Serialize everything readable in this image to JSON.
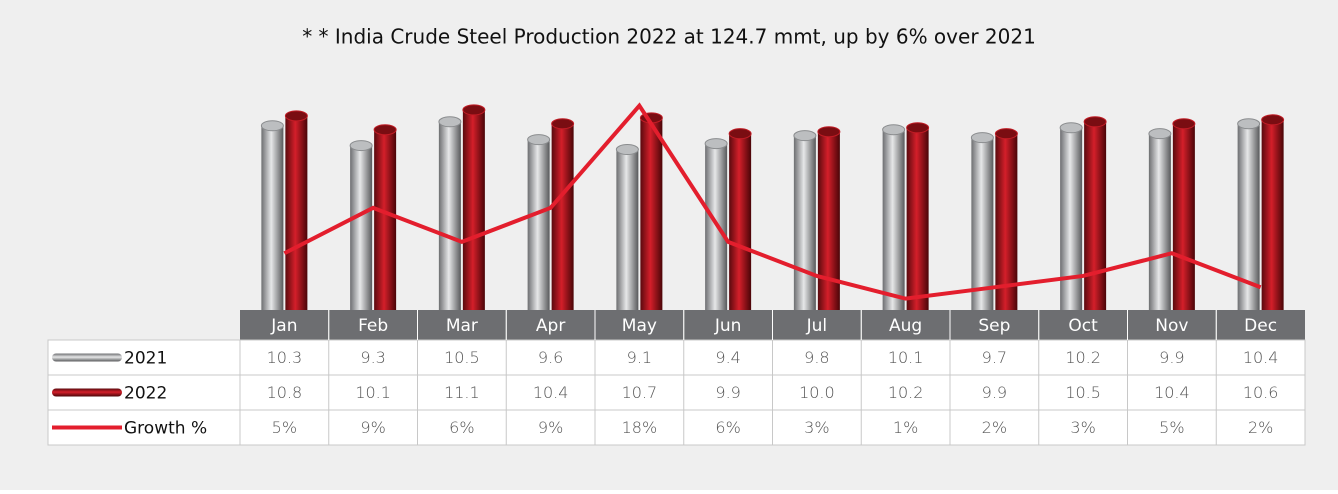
{
  "chart_data": {
    "type": "bar",
    "title": "* * India Crude Steel Production 2022 at 124.7 mmt, up by 6% over 2021",
    "categories": [
      "Jan",
      "Feb",
      "Mar",
      "Apr",
      "May",
      "Jun",
      "Jul",
      "Aug",
      "Sep",
      "Oct",
      "Nov",
      "Dec"
    ],
    "series": [
      {
        "name": "2021",
        "color": "#a7a9ac",
        "values": [
          10.3,
          9.3,
          10.5,
          9.6,
          9.1,
          9.4,
          9.8,
          10.1,
          9.7,
          10.2,
          9.9,
          10.4
        ]
      },
      {
        "name": "2022",
        "color": "#b5121b",
        "values": [
          10.8,
          10.1,
          11.1,
          10.4,
          10.7,
          9.9,
          10.0,
          10.2,
          9.9,
          10.5,
          10.4,
          10.6
        ],
        "value_labels": [
          "10.8",
          "10.1",
          "11.1",
          "10.4",
          "10.7",
          "9.9",
          "10.0",
          "10.2",
          "9.9",
          "10.5",
          "10.4",
          "10.6"
        ]
      },
      {
        "name": "Growth %",
        "color": "#e31e2d",
        "type": "line",
        "axis": "y2",
        "values": [
          5,
          9,
          6,
          9,
          18,
          6,
          3,
          1,
          2,
          3,
          5,
          2
        ],
        "value_labels": [
          "5%",
          "9%",
          "6%",
          "9%",
          "18%",
          "6%",
          "3%",
          "1%",
          "2%",
          "3%",
          "5%",
          "2%"
        ]
      }
    ],
    "ylim": [
      1,
      11.6
    ],
    "y2lim": [
      0,
      18.5
    ]
  }
}
